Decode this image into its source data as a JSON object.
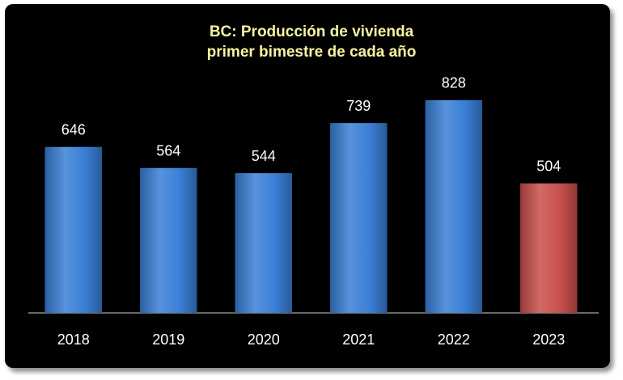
{
  "chart_data": {
    "type": "bar",
    "title": [
      "BC: Producción de vivienda",
      "primer bimestre de cada año"
    ],
    "categories": [
      "2018",
      "2019",
      "2020",
      "2021",
      "2022",
      "2023"
    ],
    "values": [
      646,
      564,
      544,
      739,
      828,
      504
    ],
    "colors": [
      "#3a7fd6",
      "#3a7fd6",
      "#3a7fd6",
      "#3a7fd6",
      "#3a7fd6",
      "#c9504c"
    ],
    "ylim": [
      0,
      900
    ]
  }
}
